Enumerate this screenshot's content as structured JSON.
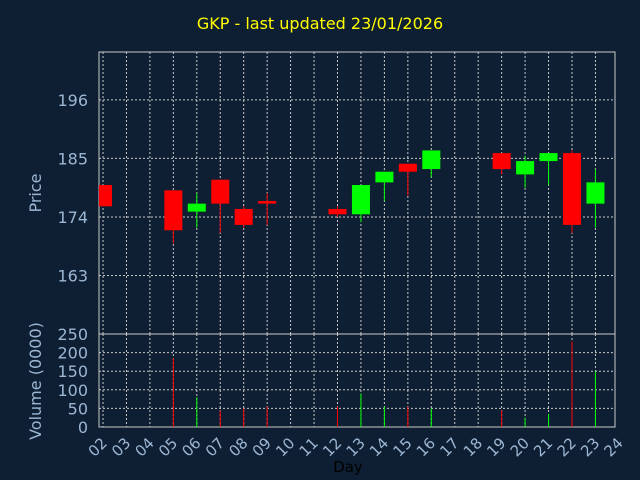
{
  "chart_data": {
    "type": "candlestick",
    "title": "GKP - last updated 23/01/2026",
    "xlabel": "Day",
    "price_panel": {
      "ylabel": "Price",
      "yticks": [
        163,
        174,
        185,
        196
      ],
      "ylim": [
        152,
        205
      ]
    },
    "volume_panel": {
      "ylabel": "Volume (0000)",
      "yticks": [
        0,
        50,
        100,
        150,
        200,
        250
      ],
      "ylim": [
        0,
        250
      ]
    },
    "x_tick_labels": [
      "02",
      "03",
      "04",
      "05",
      "06",
      "07",
      "08",
      "09",
      "10",
      "11",
      "12",
      "13",
      "14",
      "15",
      "16",
      "17",
      "18",
      "19",
      "20",
      "21",
      "22",
      "23",
      "24"
    ],
    "grid": true,
    "colors": {
      "background": "#0f1f33",
      "up": "#00ff00",
      "down": "#ff0000",
      "grid": "#c8c8c8",
      "axis_text": "#9bb7d4",
      "title": "#ffff00",
      "axis_label": "#9bb7d4"
    },
    "candles": [
      {
        "day": "02",
        "open": 180.0,
        "close": 176.0,
        "high": 180.0,
        "low": 176.0,
        "volume": 0
      },
      {
        "day": "05",
        "open": 179.0,
        "close": 171.5,
        "high": 179.0,
        "low": 169.0,
        "volume": 185
      },
      {
        "day": "06",
        "open": 175.0,
        "close": 176.5,
        "high": 178.5,
        "low": 172.0,
        "volume": 80
      },
      {
        "day": "07",
        "open": 181.0,
        "close": 176.5,
        "high": 181.0,
        "low": 171.0,
        "volume": 45
      },
      {
        "day": "08",
        "open": 175.5,
        "close": 172.5,
        "high": 176.0,
        "low": 172.0,
        "volume": 50
      },
      {
        "day": "09",
        "open": 177.0,
        "close": 176.5,
        "high": 178.5,
        "low": 172.5,
        "volume": 55
      },
      {
        "day": "12",
        "open": 175.5,
        "close": 174.5,
        "high": 176.0,
        "low": 174.0,
        "volume": 55
      },
      {
        "day": "13",
        "open": 174.5,
        "close": 180.0,
        "high": 180.0,
        "low": 173.0,
        "volume": 90
      },
      {
        "day": "14",
        "open": 180.5,
        "close": 182.5,
        "high": 182.5,
        "low": 177.0,
        "volume": 55
      },
      {
        "day": "15",
        "open": 184.0,
        "close": 182.5,
        "high": 184.0,
        "low": 178.0,
        "volume": 55
      },
      {
        "day": "16",
        "open": 183.0,
        "close": 186.5,
        "high": 186.5,
        "low": 181.5,
        "volume": 50
      },
      {
        "day": "19",
        "open": 186.0,
        "close": 183.0,
        "high": 186.0,
        "low": 182.0,
        "volume": 45
      },
      {
        "day": "20",
        "open": 182.0,
        "close": 184.5,
        "high": 185.5,
        "low": 179.5,
        "volume": 25
      },
      {
        "day": "21",
        "open": 184.5,
        "close": 186.0,
        "high": 186.0,
        "low": 180.0,
        "volume": 35
      },
      {
        "day": "22",
        "open": 186.0,
        "close": 172.5,
        "high": 186.5,
        "low": 171.0,
        "volume": 230
      },
      {
        "day": "23",
        "open": 176.5,
        "close": 180.5,
        "high": 183.0,
        "low": 172.0,
        "volume": 150
      }
    ]
  }
}
